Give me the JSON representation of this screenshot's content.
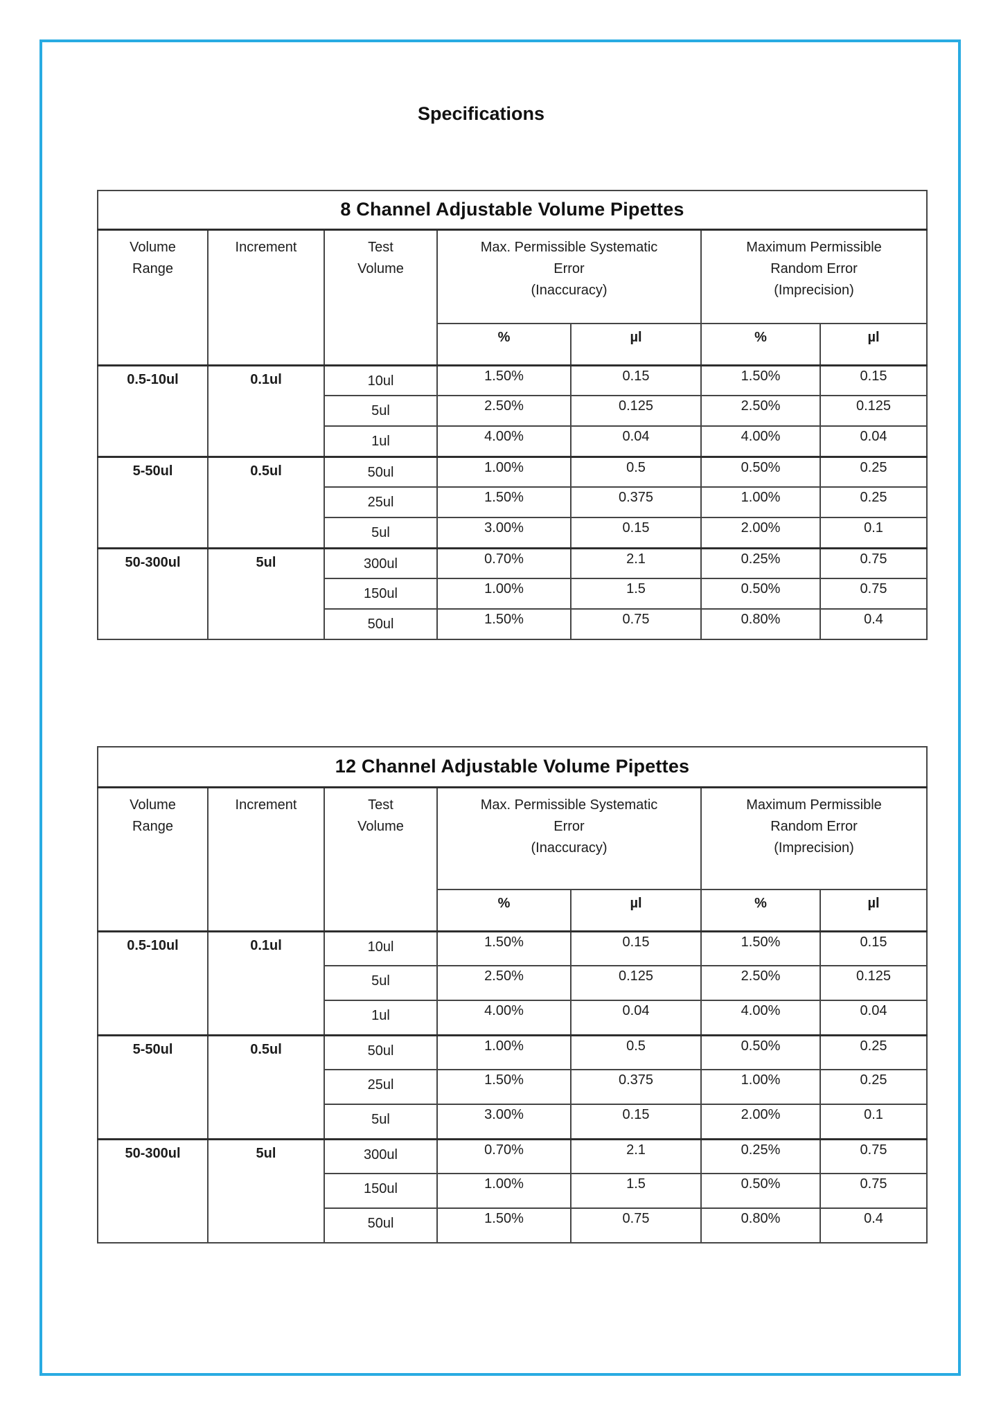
{
  "page": {
    "title": "Specifications"
  },
  "accent_color": "#29abe2",
  "tables": [
    {
      "title": "8 Channel Adjustable Volume Pipettes",
      "header": {
        "volume_range": "Volume\nRange",
        "increment": "Increment",
        "test_volume": "Test\nVolume",
        "systematic_error": "Max. Permissible Systematic\nError\n(Inaccuracy)",
        "random_error": "Maximum Permissible\nRandom Error\n(Imprecision)",
        "percent": "%",
        "microliter": "µl"
      },
      "groups": [
        {
          "volume_range": "0.5-10ul",
          "increment": "0.1ul",
          "rows": [
            {
              "test_volume": "10ul",
              "sys_pct": "1.50%",
              "sys_ul": "0.15",
              "rand_pct": "1.50%",
              "rand_ul": "0.15"
            },
            {
              "test_volume": "5ul",
              "sys_pct": "2.50%",
              "sys_ul": "0.125",
              "rand_pct": "2.50%",
              "rand_ul": "0.125"
            },
            {
              "test_volume": "1ul",
              "sys_pct": "4.00%",
              "sys_ul": "0.04",
              "rand_pct": "4.00%",
              "rand_ul": "0.04"
            }
          ]
        },
        {
          "volume_range": "5-50ul",
          "increment": "0.5ul",
          "rows": [
            {
              "test_volume": "50ul",
              "sys_pct": "1.00%",
              "sys_ul": "0.5",
              "rand_pct": "0.50%",
              "rand_ul": "0.25"
            },
            {
              "test_volume": "25ul",
              "sys_pct": "1.50%",
              "sys_ul": "0.375",
              "rand_pct": "1.00%",
              "rand_ul": "0.25"
            },
            {
              "test_volume": "5ul",
              "sys_pct": "3.00%",
              "sys_ul": "0.15",
              "rand_pct": "2.00%",
              "rand_ul": "0.1"
            }
          ]
        },
        {
          "volume_range": "50-300ul",
          "increment": "5ul",
          "rows": [
            {
              "test_volume": "300ul",
              "sys_pct": "0.70%",
              "sys_ul": "2.1",
              "rand_pct": "0.25%",
              "rand_ul": "0.75"
            },
            {
              "test_volume": "150ul",
              "sys_pct": "1.00%",
              "sys_ul": "1.5",
              "rand_pct": "0.50%",
              "rand_ul": "0.75"
            },
            {
              "test_volume": "50ul",
              "sys_pct": "1.50%",
              "sys_ul": "0.75",
              "rand_pct": "0.80%",
              "rand_ul": "0.4"
            }
          ]
        }
      ]
    },
    {
      "title": "12 Channel Adjustable Volume Pipettes",
      "header": {
        "volume_range": "Volume\nRange",
        "increment": "Increment",
        "test_volume": "Test\nVolume",
        "systematic_error": "Max. Permissible Systematic\nError\n(Inaccuracy)",
        "random_error": "Maximum Permissible\nRandom Error\n(Imprecision)",
        "percent": "%",
        "microliter": "µl"
      },
      "groups": [
        {
          "volume_range": "0.5-10ul",
          "increment": "0.1ul",
          "rows": [
            {
              "test_volume": "10ul",
              "sys_pct": "1.50%",
              "sys_ul": "0.15",
              "rand_pct": "1.50%",
              "rand_ul": "0.15"
            },
            {
              "test_volume": "5ul",
              "sys_pct": "2.50%",
              "sys_ul": "0.125",
              "rand_pct": "2.50%",
              "rand_ul": "0.125"
            },
            {
              "test_volume": "1ul",
              "sys_pct": "4.00%",
              "sys_ul": "0.04",
              "rand_pct": "4.00%",
              "rand_ul": "0.04"
            }
          ]
        },
        {
          "volume_range": "5-50ul",
          "increment": "0.5ul",
          "rows": [
            {
              "test_volume": "50ul",
              "sys_pct": "1.00%",
              "sys_ul": "0.5",
              "rand_pct": "0.50%",
              "rand_ul": "0.25"
            },
            {
              "test_volume": "25ul",
              "sys_pct": "1.50%",
              "sys_ul": "0.375",
              "rand_pct": "1.00%",
              "rand_ul": "0.25"
            },
            {
              "test_volume": "5ul",
              "sys_pct": "3.00%",
              "sys_ul": "0.15",
              "rand_pct": "2.00%",
              "rand_ul": "0.1"
            }
          ]
        },
        {
          "volume_range": "50-300ul",
          "increment": "5ul",
          "rows": [
            {
              "test_volume": "300ul",
              "sys_pct": "0.70%",
              "sys_ul": "2.1",
              "rand_pct": "0.25%",
              "rand_ul": "0.75"
            },
            {
              "test_volume": "150ul",
              "sys_pct": "1.00%",
              "sys_ul": "1.5",
              "rand_pct": "0.50%",
              "rand_ul": "0.75"
            },
            {
              "test_volume": "50ul",
              "sys_pct": "1.50%",
              "sys_ul": "0.75",
              "rand_pct": "0.80%",
              "rand_ul": "0.4"
            }
          ]
        }
      ]
    }
  ]
}
